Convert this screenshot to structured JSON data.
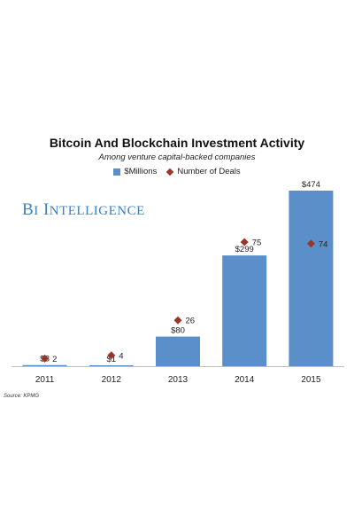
{
  "chart_data": {
    "type": "bar",
    "title": "Bitcoin And Blockchain Investment Activity",
    "subtitle": "Among venture capital-backed companies",
    "watermark": "BI INTELLIGENCE",
    "source": "Source: KPMG",
    "categories": [
      "2011",
      "2012",
      "2013",
      "2014",
      "2015"
    ],
    "series": [
      {
        "name": "$Millions",
        "kind": "bar",
        "color": "#5b8fc9",
        "values": [
          3,
          1,
          80,
          299,
          474
        ],
        "labels": [
          "$3",
          "$1",
          "$80",
          "$299",
          "$474"
        ]
      },
      {
        "name": "Number of Deals",
        "kind": "marker",
        "marker": "diamond",
        "color": "#983628",
        "values": [
          2,
          4,
          26,
          75,
          74
        ],
        "labels": [
          "2",
          "4",
          "26",
          "75",
          "74"
        ]
      }
    ],
    "ylim": [
      0,
      474
    ],
    "deals_ylim": [
      0,
      110
    ],
    "grid": false,
    "legend_position": "top"
  }
}
